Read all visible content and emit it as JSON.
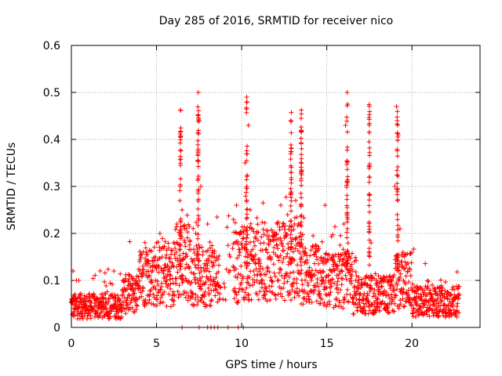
{
  "chart_data": {
    "type": "scatter",
    "title": "Day 285 of 2016, SRMTID for receiver nico",
    "xlabel": "GPS time / hours",
    "ylabel": "SRMTID / TECUs",
    "xlim": [
      0,
      24
    ],
    "ylim": [
      0,
      0.6
    ],
    "x_ticks": [
      0,
      5,
      10,
      15,
      20
    ],
    "y_ticks": [
      0,
      0.1,
      0.2,
      0.3,
      0.4,
      0.5,
      0.6
    ],
    "x_tick_labels": [
      "0",
      "5",
      "10",
      "15",
      "20"
    ],
    "y_tick_labels": [
      "0",
      "0.1",
      "0.2",
      "0.3",
      "0.4",
      "0.5",
      "0.6"
    ],
    "grid": true,
    "marker": "+",
    "color": "#ff0000",
    "data_x_range": [
      0,
      22.8
    ],
    "series": [
      {
        "name": "SRMTID",
        "points": [
          [
            0.0,
            0.06
          ],
          [
            0.1,
            0.12
          ],
          [
            0.2,
            0.05
          ],
          [
            0.3,
            0.1
          ],
          [
            0.4,
            0.04
          ],
          [
            0.5,
            0.07
          ],
          [
            0.6,
            0.06
          ],
          [
            0.8,
            0.05
          ],
          [
            1.0,
            0.03
          ],
          [
            1.2,
            0.04
          ],
          [
            1.4,
            0.03
          ],
          [
            1.6,
            0.04
          ],
          [
            1.8,
            0.04
          ],
          [
            2.0,
            0.05
          ],
          [
            2.2,
            0.06
          ],
          [
            2.4,
            0.07
          ],
          [
            2.5,
            0.12
          ],
          [
            2.6,
            0.05
          ],
          [
            2.8,
            0.06
          ],
          [
            3.0,
            0.07
          ],
          [
            3.2,
            0.08
          ],
          [
            3.4,
            0.09
          ],
          [
            3.6,
            0.08
          ],
          [
            3.8,
            0.1
          ],
          [
            4.0,
            0.12
          ],
          [
            4.2,
            0.13
          ],
          [
            4.4,
            0.16
          ],
          [
            4.6,
            0.11
          ],
          [
            4.8,
            0.14
          ],
          [
            5.0,
            0.18
          ],
          [
            5.2,
            0.2
          ],
          [
            5.4,
            0.12
          ],
          [
            5.6,
            0.1
          ],
          [
            5.8,
            0.14
          ],
          [
            6.0,
            0.18
          ],
          [
            6.2,
            0.22
          ],
          [
            6.4,
            0.3
          ],
          [
            6.5,
            0.25
          ],
          [
            6.7,
            0.15
          ],
          [
            6.9,
            0.13
          ],
          [
            7.1,
            0.14
          ],
          [
            7.3,
            0.2
          ],
          [
            7.45,
            0.5
          ],
          [
            7.5,
            0.44
          ],
          [
            7.6,
            0.3
          ],
          [
            7.8,
            0.12
          ],
          [
            8.0,
            0.22
          ],
          [
            8.2,
            0.1
          ],
          [
            8.6,
            0.09
          ],
          [
            8.9,
            0.06
          ],
          [
            9.5,
            0.13
          ],
          [
            9.7,
            0.26
          ],
          [
            9.9,
            0.16
          ],
          [
            10.1,
            0.19
          ],
          [
            10.2,
            0.35
          ],
          [
            10.3,
            0.49
          ],
          [
            10.4,
            0.43
          ],
          [
            10.5,
            0.25
          ],
          [
            10.7,
            0.12
          ],
          [
            10.9,
            0.1
          ],
          [
            11.1,
            0.13
          ],
          [
            11.3,
            0.18
          ],
          [
            11.5,
            0.12
          ],
          [
            11.7,
            0.15
          ],
          [
            11.9,
            0.17
          ],
          [
            12.1,
            0.22
          ],
          [
            12.3,
            0.26
          ],
          [
            12.5,
            0.19
          ],
          [
            12.7,
            0.24
          ],
          [
            12.9,
            0.33
          ],
          [
            13.1,
            0.22
          ],
          [
            13.3,
            0.18
          ],
          [
            13.5,
            0.26
          ],
          [
            13.7,
            0.16
          ],
          [
            13.9,
            0.12
          ],
          [
            14.1,
            0.1
          ],
          [
            14.3,
            0.08
          ],
          [
            14.5,
            0.07
          ],
          [
            14.7,
            0.1
          ],
          [
            14.9,
            0.26
          ],
          [
            15.0,
            0.11
          ],
          [
            15.2,
            0.1
          ],
          [
            15.4,
            0.13
          ],
          [
            15.6,
            0.09
          ],
          [
            15.8,
            0.08
          ],
          [
            16.0,
            0.22
          ],
          [
            16.1,
            0.43
          ],
          [
            16.2,
            0.5
          ],
          [
            16.3,
            0.15
          ],
          [
            16.5,
            0.12
          ],
          [
            16.7,
            0.1
          ],
          [
            16.9,
            0.09
          ],
          [
            17.1,
            0.06
          ],
          [
            17.3,
            0.05
          ],
          [
            17.5,
            0.32
          ],
          [
            17.6,
            0.18
          ],
          [
            17.8,
            0.08
          ],
          [
            18.0,
            0.06
          ],
          [
            18.2,
            0.05
          ],
          [
            18.4,
            0.04
          ],
          [
            18.6,
            0.05
          ],
          [
            18.8,
            0.07
          ],
          [
            19.0,
            0.3
          ],
          [
            19.1,
            0.47
          ],
          [
            19.2,
            0.41
          ],
          [
            19.3,
            0.21
          ],
          [
            19.4,
            0.14
          ],
          [
            19.5,
            0.1
          ],
          [
            19.7,
            0.07
          ],
          [
            19.9,
            0.06
          ],
          [
            20.1,
            0.04
          ],
          [
            20.3,
            0.05
          ],
          [
            20.5,
            0.06
          ],
          [
            20.7,
            0.05
          ],
          [
            20.9,
            0.07
          ],
          [
            21.1,
            0.06
          ],
          [
            21.3,
            0.05
          ],
          [
            21.5,
            0.06
          ],
          [
            21.7,
            0.07
          ],
          [
            21.9,
            0.05
          ],
          [
            22.1,
            0.06
          ],
          [
            22.3,
            0.07
          ],
          [
            22.5,
            0.06
          ],
          [
            22.7,
            0.07
          ],
          [
            10.1,
            0.0
          ],
          [
            7.5,
            0.0
          ],
          [
            8.0,
            0.0
          ],
          [
            8.2,
            0.0
          ],
          [
            8.4,
            0.0
          ],
          [
            8.6,
            0.0
          ],
          [
            9.2,
            0.0
          ],
          [
            9.8,
            0.0
          ],
          [
            6.5,
            0.0
          ]
        ]
      }
    ]
  }
}
